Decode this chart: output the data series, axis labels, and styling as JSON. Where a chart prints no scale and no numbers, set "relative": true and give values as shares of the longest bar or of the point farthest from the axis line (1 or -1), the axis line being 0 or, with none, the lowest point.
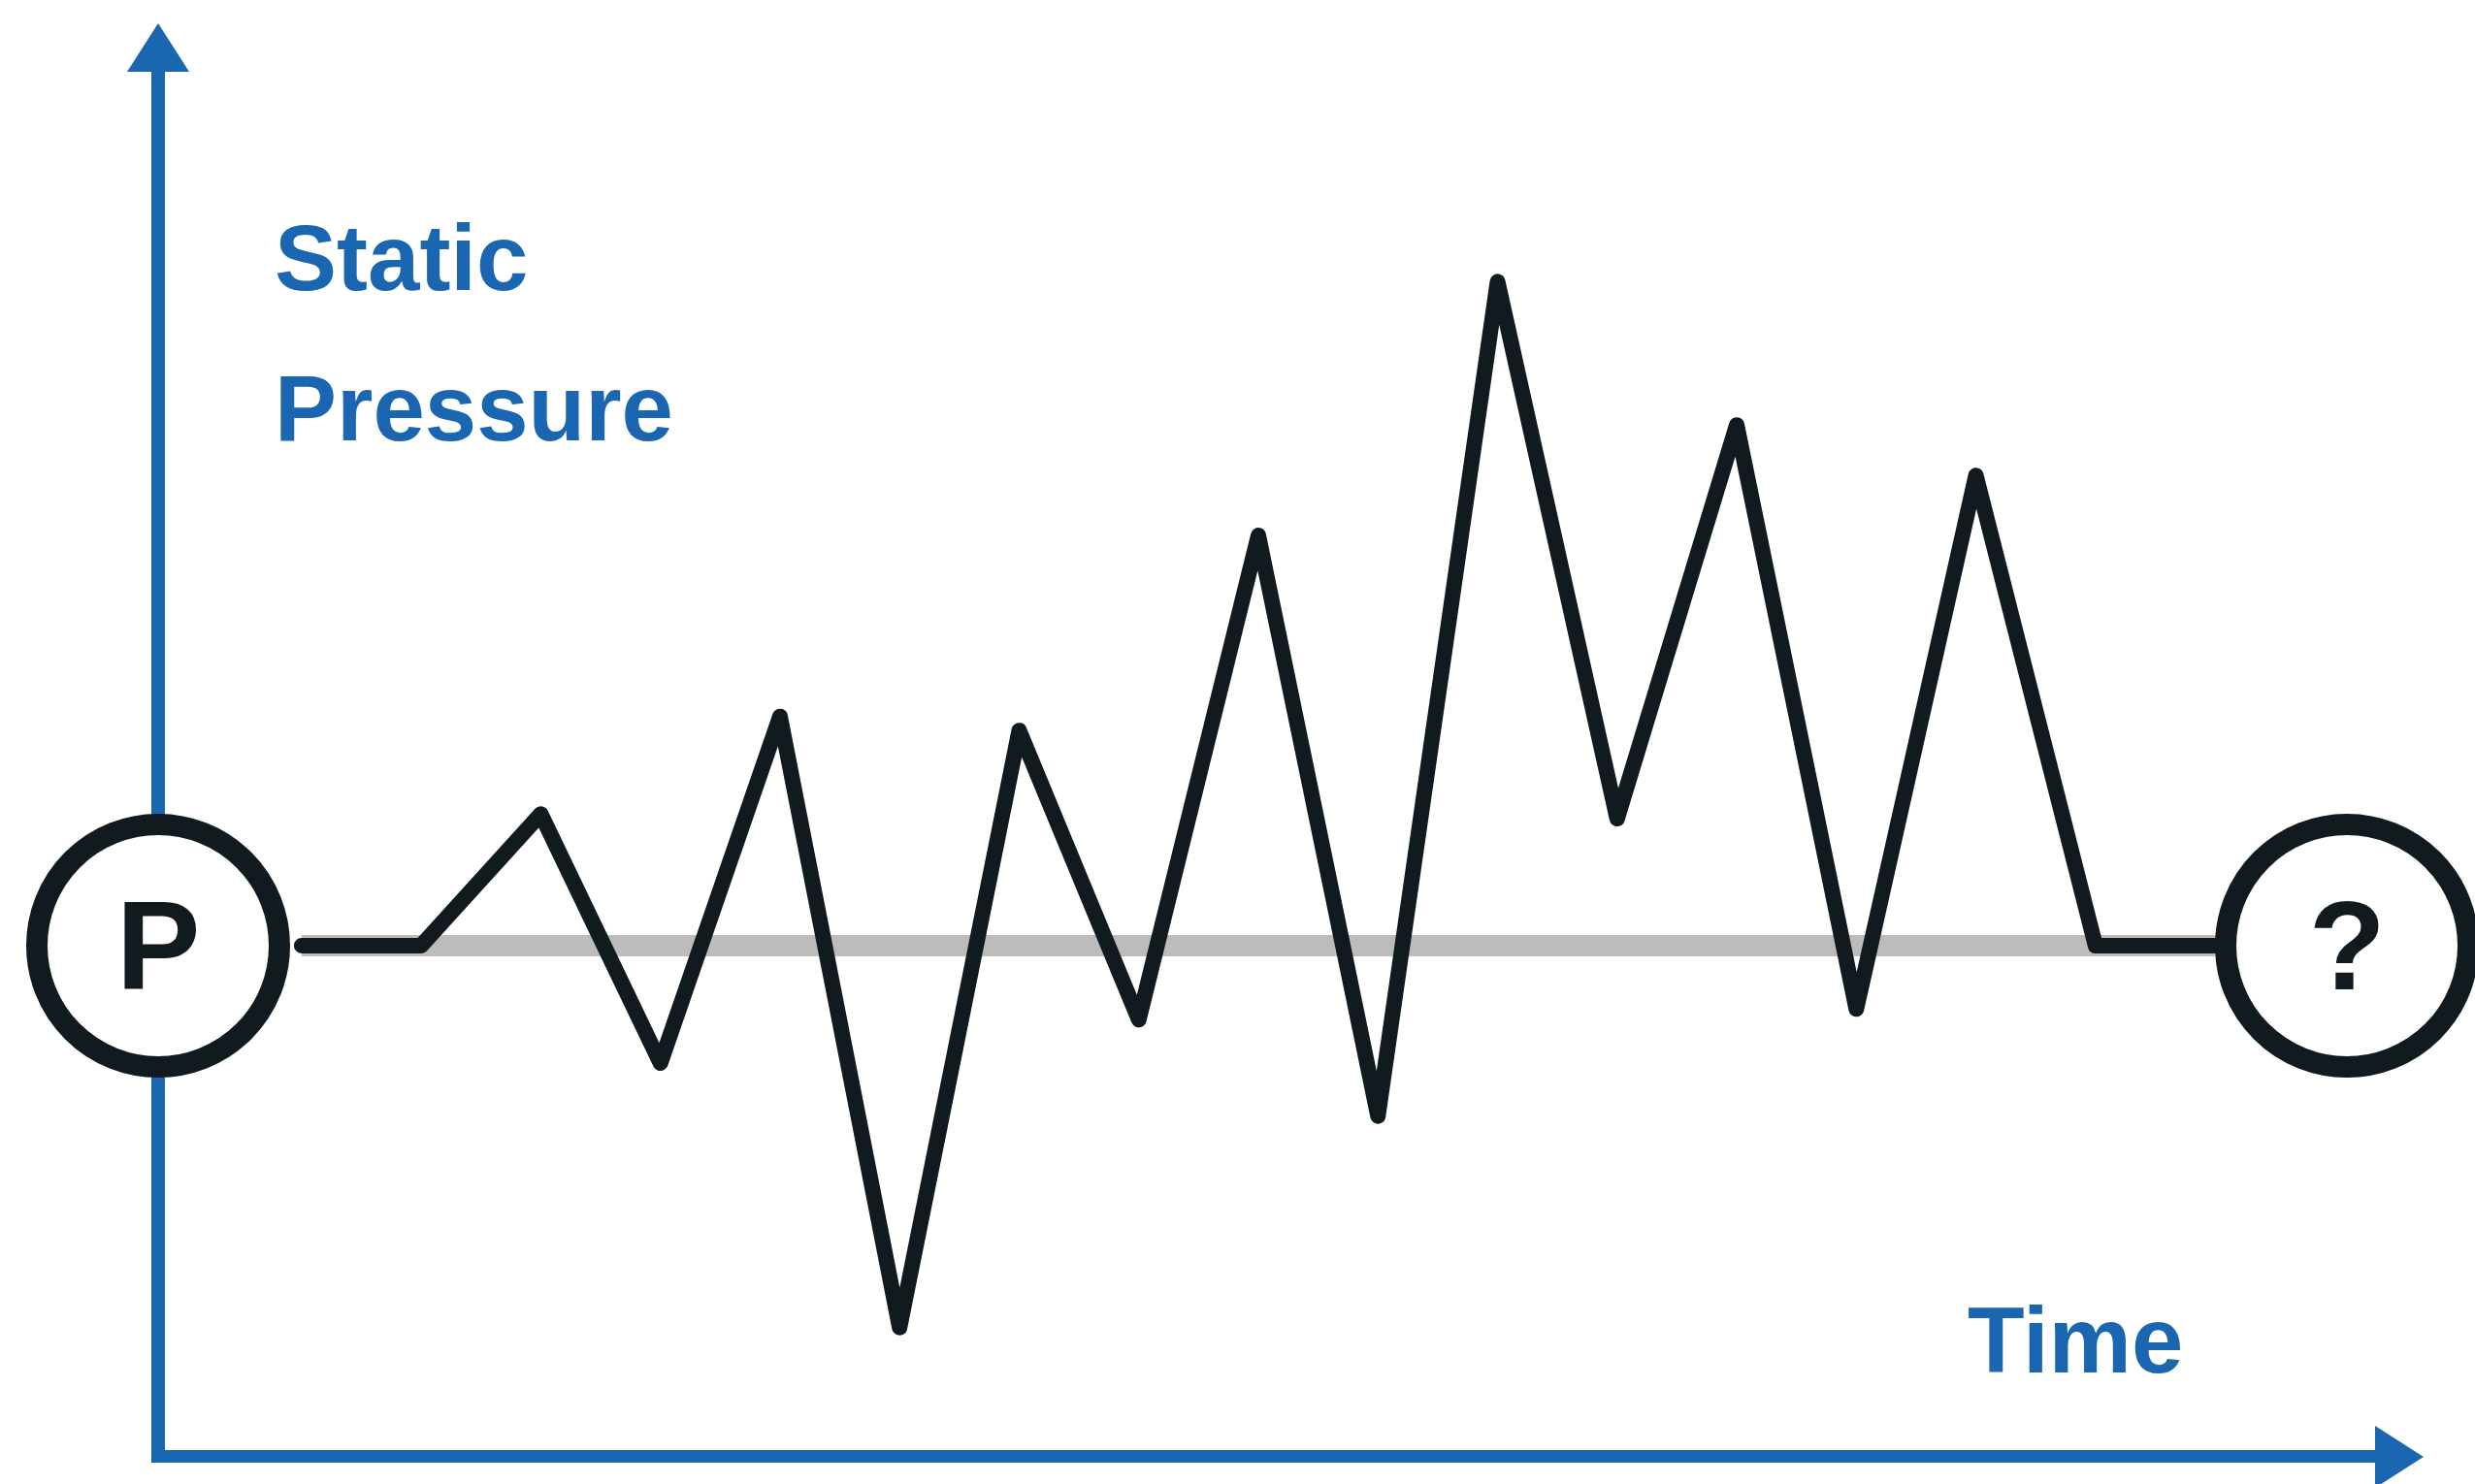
{
  "chart_data": {
    "type": "line",
    "relative": true,
    "xlabel": "Time",
    "ylabel": "Static Pressure",
    "annotations": [
      "P",
      "?"
    ],
    "categories": [
      null,
      null,
      null,
      null,
      null,
      null,
      null,
      null,
      null,
      null,
      null,
      null,
      null,
      null,
      null,
      null,
      null
    ],
    "series": [
      {
        "color": "#111a1f",
        "values": [
          0.435,
          0.435,
          0.547,
          0.335,
          0.63,
          0.11,
          0.618,
          0.372,
          0.784,
          0.29,
          1,
          0.543,
          0.878,
          0.381,
          0.835,
          0.435,
          0.435
        ]
      }
    ],
    "ref_lines": [
      {
        "axis": "y",
        "value": 0.435,
        "color": "#bcbcbc"
      }
    ],
    "grid": false,
    "legend": false,
    "marker": "none",
    "line_style": "solid"
  }
}
